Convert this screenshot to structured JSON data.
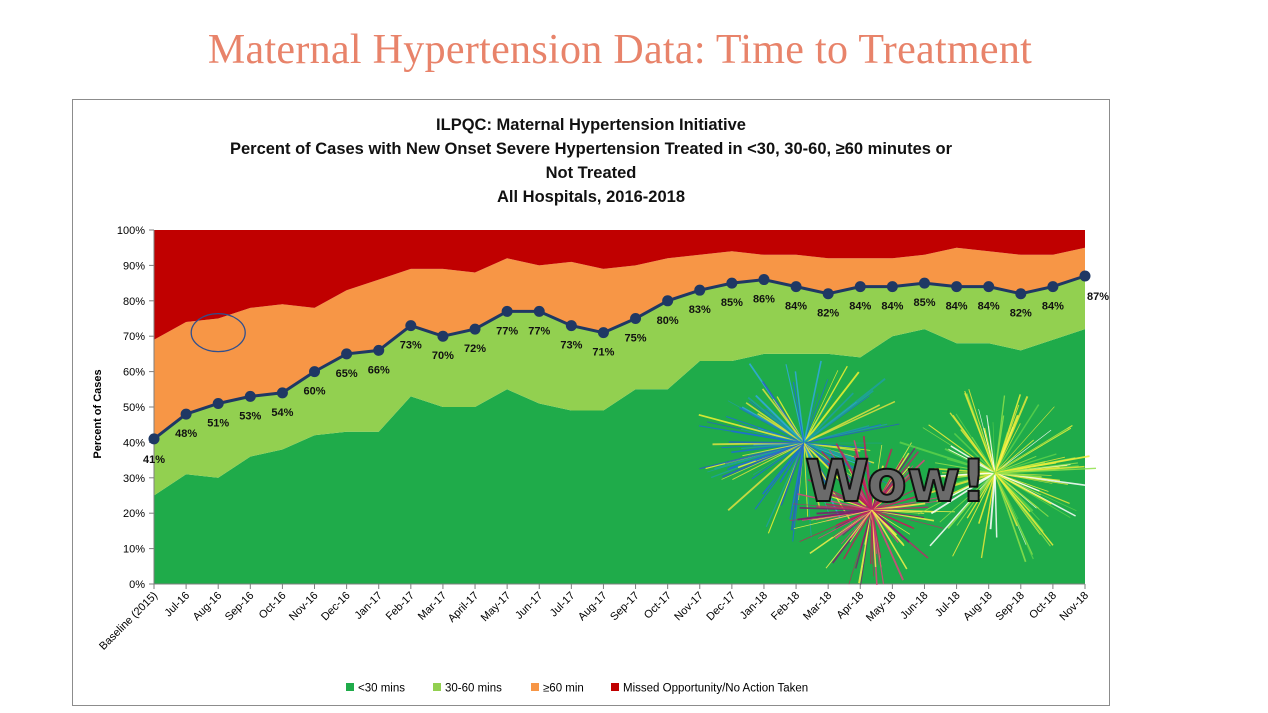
{
  "slide": {
    "title": "Maternal Hypertension Data: Time to Treatment",
    "overlay_text": "Wow!"
  },
  "chart_data": {
    "type": "area",
    "stacked": true,
    "title_lines": [
      "ILPQC: Maternal Hypertension Initiative",
      "Percent of Cases with New Onset Severe Hypertension Treated in <30, 30-60, ≥60 minutes or",
      "Not Treated",
      "All Hospitals, 2016-2018"
    ],
    "ylabel": "Percent of Cases",
    "ylim": [
      0,
      100
    ],
    "yticks": [
      "0%",
      "10%",
      "20%",
      "30%",
      "40%",
      "50%",
      "60%",
      "70%",
      "80%",
      "90%",
      "100%"
    ],
    "legend_position": "bottom",
    "categories": [
      "Baseline (2015)",
      "Jul-16",
      "Aug-16",
      "Sep-16",
      "Oct-16",
      "Nov-16",
      "Dec-16",
      "Jan-17",
      "Feb-17",
      "Mar-17",
      "April-17",
      "May-17",
      "Jun-17",
      "Jul-17",
      "Aug-17",
      "Sep-17",
      "Oct-17",
      "Nov-17",
      "Dec-17",
      "Jan-18",
      "Feb-18",
      "Mar-18",
      "Apr-18",
      "May-18",
      "Jun-18",
      "Jul-18",
      "Aug-18",
      "Sep-18",
      "Oct-18",
      "Nov-18"
    ],
    "series": [
      {
        "name": "<30 mins",
        "color": "#1fab4a",
        "values": [
          25,
          31,
          30,
          36,
          38,
          42,
          43,
          43,
          53,
          50,
          50,
          55,
          51,
          49,
          49,
          55,
          55,
          63,
          63,
          65,
          65,
          65,
          64,
          70,
          72,
          68,
          68,
          66,
          69,
          72
        ]
      },
      {
        "name": "30-60 mins",
        "color": "#92d050",
        "values": [
          16,
          17,
          21,
          17,
          16,
          18,
          22,
          23,
          20,
          20,
          22,
          22,
          26,
          24,
          22,
          20,
          25,
          20,
          22,
          21,
          19,
          17,
          20,
          14,
          13,
          16,
          16,
          16,
          15,
          15
        ]
      },
      {
        "name": "≥60 min",
        "color": "#f79646",
        "values": [
          28,
          26,
          24,
          25,
          25,
          18,
          18,
          20,
          16,
          19,
          16,
          15,
          13,
          18,
          18,
          15,
          12,
          10,
          9,
          7,
          9,
          10,
          8,
          8,
          8,
          11,
          10,
          11,
          9,
          8
        ]
      },
      {
        "name": "Missed Opportunity/No Action Taken",
        "color": "#c00000",
        "values": [
          31,
          26,
          25,
          22,
          21,
          22,
          17,
          14,
          11,
          11,
          12,
          8,
          10,
          9,
          11,
          10,
          8,
          7,
          6,
          7,
          7,
          8,
          8,
          8,
          7,
          5,
          6,
          7,
          7,
          5
        ]
      }
    ],
    "line": {
      "color": "#1f3864",
      "values": [
        41,
        48,
        51,
        53,
        54,
        60,
        65,
        66,
        73,
        70,
        72,
        77,
        77,
        73,
        71,
        75,
        80,
        83,
        85,
        86,
        84,
        82,
        84,
        84,
        85,
        84,
        84,
        82,
        84,
        87
      ],
      "labels": [
        "41%",
        "48%",
        "51%",
        "53%",
        "54%",
        "60%",
        "65%",
        "66%",
        "73%",
        "70%",
        "72%",
        "77%",
        "77%",
        "73%",
        "71%",
        "75%",
        "80%",
        "83%",
        "85%",
        "86%",
        "84%",
        "82%",
        "84%",
        "84%",
        "85%",
        "84%",
        "84%",
        "82%",
        "84%",
        "87%"
      ]
    },
    "annotation": {
      "type": "ellipse",
      "category": "Aug-16",
      "value": 71
    }
  }
}
